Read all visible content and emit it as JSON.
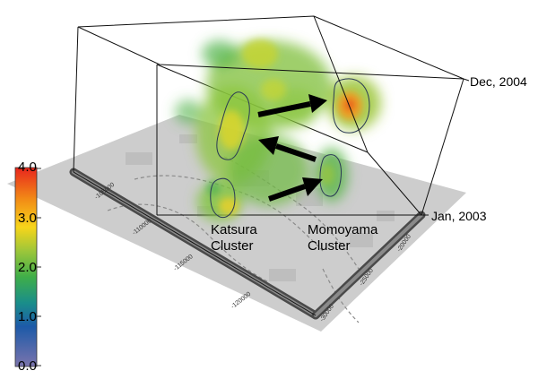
{
  "colorbar": {
    "ticks": [
      "4.0",
      "3.0",
      "2.0",
      "1.0",
      "0.0"
    ],
    "gradient": [
      "#e8251d",
      "#f28c16",
      "#f7d51a",
      "#9cc63a",
      "#3fae49",
      "#1a8e8a",
      "#1d5aa8",
      "#6f6aa8"
    ]
  },
  "clusters": {
    "katsura": {
      "line1": "Katsura",
      "line2": "Cluster"
    },
    "momoyama": {
      "line1": "Momoyama",
      "line2": "Cluster"
    }
  },
  "time_axis": {
    "top": "Dec, 2004",
    "bottom": "Jan, 2003"
  },
  "map_axis_labels": {
    "y1": "-105000",
    "y2": "-110000",
    "y3": "-115000",
    "y4": "-120000",
    "x1": "-30000",
    "x2": "-25000",
    "x3": "-20000"
  },
  "colors": {
    "box_edge": "#111111",
    "ground": "#c9c9c9",
    "axis_bar": "#555555",
    "arrow": "#000000"
  }
}
